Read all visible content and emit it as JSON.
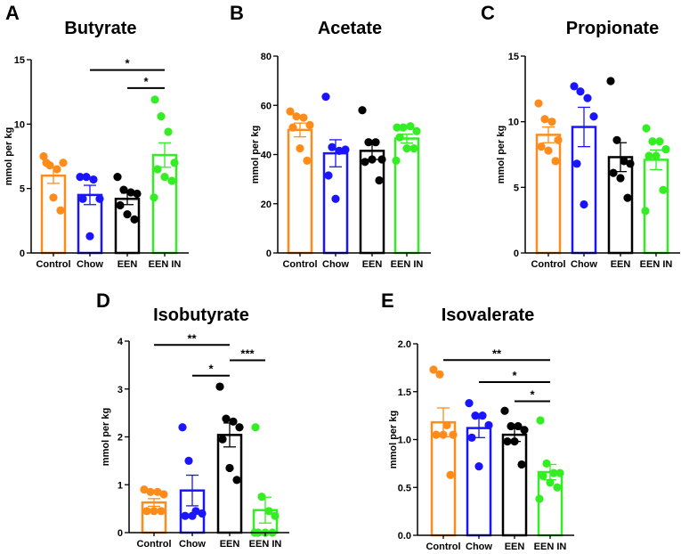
{
  "colors": {
    "Control": "#ff8c1a",
    "Chow": "#1a14ff",
    "EEN": "#000000",
    "EEN IN": "#33ee22"
  },
  "chart_data": [
    {
      "panel": "A",
      "type": "bar",
      "title": "Butyrate",
      "ylabel": "mmol per kg",
      "categories": [
        "Control",
        "Chow",
        "EEN",
        "EEN IN"
      ],
      "ylim": [
        0,
        15
      ],
      "yticks": [
        "0",
        "5",
        "10",
        "15"
      ],
      "ytick_values": [
        0,
        5,
        10,
        15
      ],
      "means": [
        6.0,
        4.5,
        4.2,
        7.6
      ],
      "sem": [
        0.6,
        0.75,
        0.45,
        0.95
      ],
      "points": [
        [
          7.5,
          6.8,
          6.5,
          7.0,
          7.0,
          4.3,
          3.3
        ],
        [
          5.9,
          5.9,
          5.7,
          4.2,
          4.2,
          1.3
        ],
        [
          5.9,
          4.9,
          4.7,
          4.6,
          3.7,
          3.0,
          2.6
        ],
        [
          11.9,
          10.6,
          9.4,
          7.0,
          6.5,
          5.9,
          5.6,
          4.3
        ]
      ],
      "significance": [
        {
          "from": 1,
          "to": 3,
          "y": 14.2,
          "label": "*"
        },
        {
          "from": 2,
          "to": 3,
          "y": 12.8,
          "label": "*"
        }
      ]
    },
    {
      "panel": "B",
      "type": "bar",
      "title": "Acetate",
      "ylabel": "mmol per kg",
      "categories": [
        "Control",
        "Chow",
        "EEN",
        "EEN IN"
      ],
      "ylim": [
        0,
        80
      ],
      "yticks": [
        "0",
        "20",
        "40",
        "60",
        "80"
      ],
      "ytick_values": [
        0,
        20,
        40,
        60,
        80
      ],
      "means": [
        50,
        40.5,
        41.5,
        46.5
      ],
      "sem": [
        2.8,
        5.5,
        3.5,
        1.8
      ],
      "points": [
        [
          57.5,
          55.5,
          55,
          52,
          51,
          42.5,
          37.5
        ],
        [
          63.5,
          43,
          41.5,
          42,
          31.5,
          22
        ],
        [
          58,
          45,
          45,
          38,
          37,
          38,
          29.5
        ],
        [
          51,
          51,
          51.5,
          49.5,
          47,
          42.5,
          42.5,
          37.5
        ]
      ],
      "significance": []
    },
    {
      "panel": "C",
      "type": "bar",
      "title": "Propionate",
      "ylabel": "mmol per kg",
      "categories": [
        "Control",
        "Chow",
        "EEN",
        "EEN IN"
      ],
      "ylim": [
        0,
        15
      ],
      "yticks": [
        "0",
        "5",
        "10",
        "15"
      ],
      "ytick_values": [
        0,
        5,
        10,
        15
      ],
      "means": [
        9.0,
        9.6,
        7.3,
        7.1
      ],
      "sem": [
        0.6,
        1.5,
        1.1,
        0.75
      ],
      "points": [
        [
          11.4,
          10.2,
          10.0,
          8.6,
          8.1,
          7.8,
          7.0
        ],
        [
          12.7,
          12.3,
          11.8,
          10.4,
          6.8,
          3.7
        ],
        [
          13.1,
          8.6,
          7.0,
          6.8,
          6.1,
          5.7,
          4.2
        ],
        [
          9.5,
          8.5,
          8.5,
          7.9,
          7.4,
          7.4,
          4.8,
          3.2
        ]
      ],
      "significance": []
    },
    {
      "panel": "D",
      "type": "bar",
      "title": "Isobutyrate",
      "ylabel": "mmol per kg",
      "categories": [
        "Control",
        "Chow",
        "EEN",
        "EEN IN"
      ],
      "ylim": [
        0,
        4
      ],
      "yticks": [
        "0",
        "1",
        "2",
        "3",
        "4"
      ],
      "ytick_values": [
        0,
        1,
        2,
        3,
        4
      ],
      "means": [
        0.63,
        0.88,
        2.04,
        0.47
      ],
      "sem": [
        0.08,
        0.32,
        0.25,
        0.27
      ],
      "points": [
        [
          0.9,
          0.85,
          0.85,
          0.8,
          0.45,
          0.45,
          0.45
        ],
        [
          2.2,
          1.5,
          0.45,
          0.4,
          0.35,
          0.35
        ],
        [
          3.05,
          2.38,
          2.32,
          2.2,
          1.95,
          1.35,
          1.1
        ],
        [
          2.2,
          0.75,
          0.45,
          0.35,
          0,
          0,
          0,
          0
        ]
      ],
      "significance": [
        {
          "from": 0,
          "to": 2,
          "y": 3.92,
          "label": "**"
        },
        {
          "from": 2,
          "to": 3,
          "y": 3.6,
          "label": "***"
        },
        {
          "from": 1,
          "to": 2,
          "y": 3.28,
          "label": "*"
        }
      ]
    },
    {
      "panel": "E",
      "type": "bar",
      "title": "Isovalerate",
      "ylabel": "mmol per kg",
      "categories": [
        "Control",
        "Chow",
        "EEN",
        "EEN IN"
      ],
      "ylim": [
        0,
        2
      ],
      "yticks": [
        "0.0",
        "0.5",
        "1.0",
        "1.5",
        "2.0"
      ],
      "ytick_values": [
        0,
        0.5,
        1,
        1.5,
        2
      ],
      "means": [
        1.18,
        1.12,
        1.05,
        0.66
      ],
      "sem": [
        0.15,
        0.1,
        0.07,
        0.08
      ],
      "points": [
        [
          1.73,
          1.68,
          1.15,
          1.05,
          1.05,
          1.05,
          0.63
        ],
        [
          1.38,
          1.25,
          1.25,
          1.15,
          1.02,
          0.72
        ],
        [
          1.3,
          1.14,
          1.14,
          1.1,
          0.98,
          0.98,
          0.74
        ],
        [
          1.2,
          0.75,
          0.65,
          0.65,
          0.62,
          0.55,
          0.5,
          0.38
        ]
      ],
      "significance": [
        {
          "from": 0,
          "to": 3,
          "y": 1.83,
          "label": "**"
        },
        {
          "from": 1,
          "to": 3,
          "y": 1.6,
          "label": "*"
        },
        {
          "from": 2,
          "to": 3,
          "y": 1.4,
          "label": "*"
        }
      ]
    }
  ]
}
